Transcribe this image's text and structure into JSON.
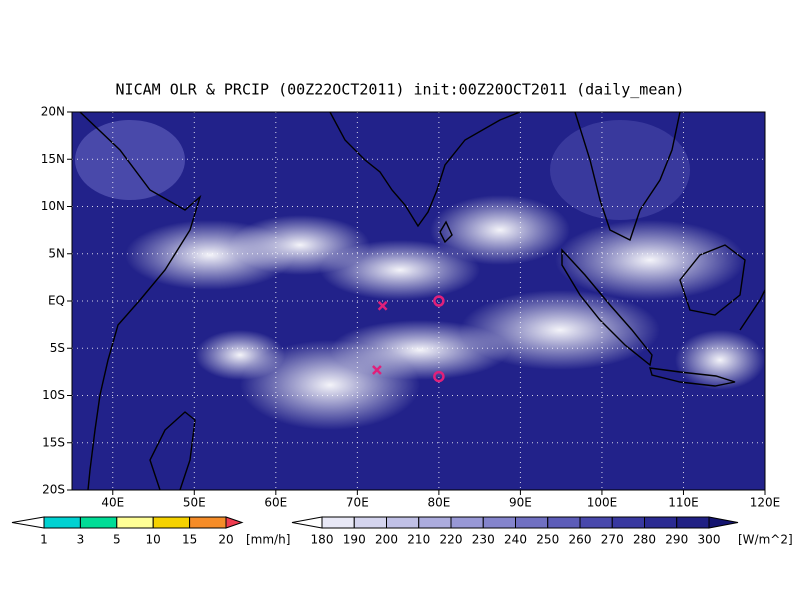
{
  "title": "NICAM OLR & PRCIP (00Z22OCT2011) init:00Z20OCT2011 (daily_mean)",
  "map": {
    "lonlim": [
      35,
      120
    ],
    "latlim": [
      -20,
      20
    ],
    "lonticks": [
      {
        "value": 40,
        "label": "40E"
      },
      {
        "value": 50,
        "label": "50E"
      },
      {
        "value": 60,
        "label": "60E"
      },
      {
        "value": 70,
        "label": "70E"
      },
      {
        "value": 80,
        "label": "80E"
      },
      {
        "value": 90,
        "label": "90E"
      },
      {
        "value": 100,
        "label": "100E"
      },
      {
        "value": 110,
        "label": "110E"
      },
      {
        "value": 120,
        "label": "120E"
      }
    ],
    "latticks": [
      {
        "value": 20,
        "label": "20N"
      },
      {
        "value": 15,
        "label": "15N"
      },
      {
        "value": 10,
        "label": "10N"
      },
      {
        "value": 5,
        "label": "5N"
      },
      {
        "value": 0,
        "label": "EQ"
      },
      {
        "value": -5,
        "label": "5S"
      },
      {
        "value": -10,
        "label": "10S"
      },
      {
        "value": -15,
        "label": "15S"
      },
      {
        "value": -20,
        "label": "20S"
      }
    ],
    "grid": true,
    "markers": [
      {
        "type": "x",
        "lon": 73.1,
        "lat": -0.5,
        "color": "#e0207a"
      },
      {
        "type": "x",
        "lon": 72.4,
        "lat": -7.3,
        "color": "#e0207a"
      },
      {
        "type": "circle",
        "lon": 80,
        "lat": 0,
        "color": "#e0207a"
      },
      {
        "type": "circle",
        "lon": 80,
        "lat": -8,
        "color": "#e0207a"
      }
    ]
  },
  "colorbars": [
    {
      "unit": "[mm/h]",
      "levels": [
        1,
        3,
        5,
        10,
        15,
        20
      ],
      "colors": [
        "#ffffff",
        "#00d2d2",
        "#00dc96",
        "#ffff96",
        "#f5d200",
        "#f58c28",
        "#f03c50"
      ]
    },
    {
      "unit": "[W/m^2]",
      "levels": [
        180,
        190,
        200,
        210,
        220,
        230,
        240,
        250,
        260,
        270,
        280,
        290,
        300
      ],
      "colors": [
        "#ffffff",
        "#e8e8f6",
        "#d4d4ee",
        "#c0c0e6",
        "#acacde",
        "#9898d6",
        "#8484cc",
        "#7070c2",
        "#5c5cb8",
        "#4848ac",
        "#3838a0",
        "#2a2a92",
        "#202084",
        "#141470"
      ]
    }
  ]
}
